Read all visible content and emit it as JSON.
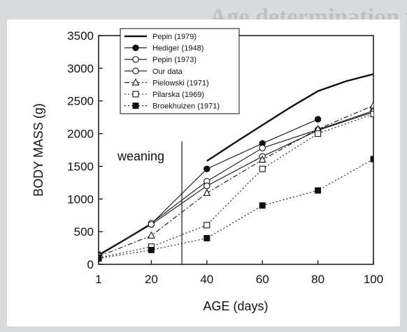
{
  "background": {
    "heading": "Age determination in leverets of b"
  },
  "chart_data": {
    "type": "line",
    "xlabel": "AGE (days)",
    "ylabel": "BODY MASS (g)",
    "xlim": [
      1,
      100
    ],
    "ylim": [
      0,
      3500
    ],
    "x_ticks": [
      1,
      20,
      40,
      60,
      80,
      100
    ],
    "y_ticks": [
      0,
      500,
      1000,
      1500,
      2000,
      2500,
      3000,
      3500
    ],
    "grid": false,
    "legend_position": "top-right",
    "annotation": {
      "text": "weaning",
      "x": 31
    },
    "series": [
      {
        "name": "Pepin (1979)",
        "style": "solid-thick",
        "marker": "none",
        "points": [
          [
            40,
            1580
          ],
          [
            50,
            1860
          ],
          [
            60,
            2130
          ],
          [
            70,
            2400
          ],
          [
            80,
            2650
          ],
          [
            90,
            2800
          ],
          [
            100,
            2910
          ]
        ]
      },
      {
        "name": "Hediger (1948)",
        "style": "solid",
        "marker": "filled-circle",
        "points": [
          [
            1,
            150
          ],
          [
            20,
            620
          ],
          [
            40,
            1460
          ],
          [
            60,
            1850
          ],
          [
            80,
            2220
          ]
        ]
      },
      {
        "name": "Pepin (1973)",
        "style": "solid",
        "marker": "open-circle",
        "points": [
          [
            1,
            140
          ],
          [
            20,
            630
          ],
          [
            40,
            1270
          ],
          [
            60,
            1780
          ],
          [
            80,
            2060
          ],
          [
            100,
            2350
          ]
        ]
      },
      {
        "name": "Our data",
        "style": "solid",
        "marker": "open-circle",
        "points": [
          [
            1,
            130
          ],
          [
            20,
            610
          ],
          [
            40,
            1200
          ],
          [
            60,
            1650
          ],
          [
            80,
            2050
          ],
          [
            100,
            2330
          ]
        ]
      },
      {
        "name": "Pielowski (1971)",
        "style": "dash-dot",
        "marker": "open-triangle",
        "points": [
          [
            1,
            120
          ],
          [
            20,
            440
          ],
          [
            40,
            1090
          ],
          [
            60,
            1600
          ],
          [
            80,
            2070
          ],
          [
            100,
            2430
          ]
        ]
      },
      {
        "name": "Pilarska (1969)",
        "style": "dotted",
        "marker": "open-square",
        "points": [
          [
            1,
            100
          ],
          [
            20,
            270
          ],
          [
            40,
            600
          ],
          [
            60,
            1460
          ],
          [
            80,
            2000
          ],
          [
            100,
            2300
          ]
        ]
      },
      {
        "name": "Broekhuizen (1971)",
        "style": "dotted",
        "marker": "filled-square",
        "points": [
          [
            1,
            90
          ],
          [
            20,
            220
          ],
          [
            40,
            400
          ],
          [
            60,
            900
          ],
          [
            80,
            1130
          ],
          [
            100,
            1610
          ]
        ]
      }
    ]
  }
}
